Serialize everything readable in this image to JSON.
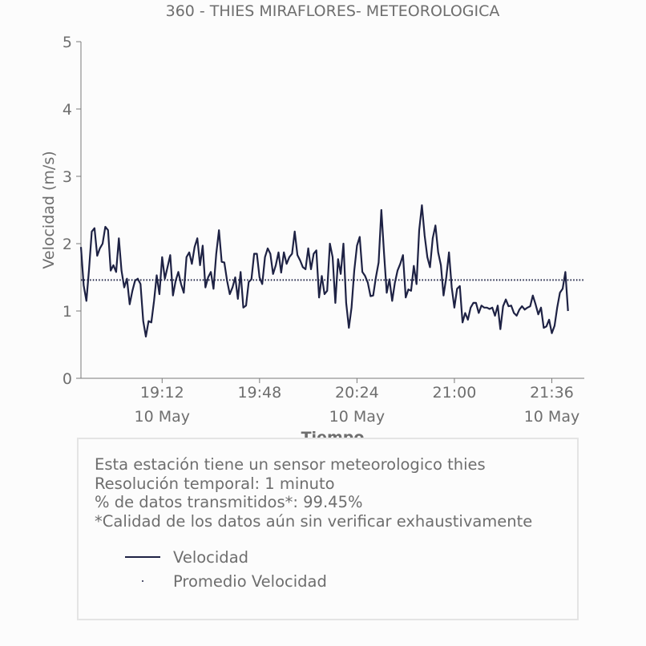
{
  "chart_data": {
    "type": "line",
    "title": "360 - THIES MIRAFLORES- METEOROLOGICA",
    "xlabel": "Tiempo",
    "ylabel": "Velocidad (m/s)",
    "ylim": [
      0,
      5
    ],
    "y_ticks": [
      "0",
      "1",
      "2",
      "3",
      "4",
      "5"
    ],
    "x_range": [
      "18:42",
      "21:48"
    ],
    "x_ticks": [
      {
        "time": "19:12",
        "label": "19:12",
        "date": "10 May"
      },
      {
        "time": "19:48",
        "label": "19:48",
        "date": ""
      },
      {
        "time": "20:24",
        "label": "20:24",
        "date": "10 May"
      },
      {
        "time": "21:00",
        "label": "21:00",
        "date": ""
      },
      {
        "time": "21:36",
        "label": "21:36",
        "date": "10 May"
      }
    ],
    "colors": {
      "velocidad": "#1e2244",
      "promedio": "#1e2244"
    },
    "series": [
      {
        "name": "Velocidad",
        "style": "solid",
        "start_time": "18:42",
        "step_minutes": 1,
        "values": [
          1.95,
          1.38,
          1.15,
          1.62,
          2.18,
          2.23,
          1.82,
          1.93,
          2.0,
          2.25,
          2.2,
          1.6,
          1.68,
          1.58,
          2.08,
          1.6,
          1.35,
          1.48,
          1.1,
          1.3,
          1.45,
          1.48,
          1.4,
          0.85,
          0.62,
          0.85,
          0.83,
          1.15,
          1.53,
          1.25,
          1.8,
          1.48,
          1.65,
          1.83,
          1.23,
          1.45,
          1.58,
          1.4,
          1.27,
          1.8,
          1.87,
          1.7,
          1.95,
          2.08,
          1.68,
          1.97,
          1.35,
          1.5,
          1.58,
          1.33,
          1.85,
          2.2,
          1.73,
          1.72,
          1.45,
          1.25,
          1.35,
          1.5,
          1.18,
          1.58,
          1.05,
          1.08,
          1.43,
          1.47,
          1.85,
          1.85,
          1.5,
          1.4,
          1.8,
          1.93,
          1.85,
          1.55,
          1.68,
          1.87,
          1.57,
          1.87,
          1.7,
          1.8,
          1.85,
          2.18,
          1.83,
          1.75,
          1.65,
          1.62,
          1.93,
          1.62,
          1.85,
          1.9,
          1.2,
          1.52,
          1.25,
          1.3,
          2.0,
          1.8,
          1.12,
          1.77,
          1.55,
          2.0,
          1.12,
          0.75,
          1.05,
          1.6,
          1.97,
          2.1,
          1.58,
          1.52,
          1.42,
          1.22,
          1.23,
          1.5,
          1.72,
          2.5,
          1.85,
          1.27,
          1.47,
          1.15,
          1.42,
          1.6,
          1.7,
          1.83,
          1.2,
          1.32,
          1.3,
          1.67,
          1.4,
          2.2,
          2.57,
          2.12,
          1.8,
          1.65,
          2.08,
          2.27,
          1.87,
          1.68,
          1.23,
          1.5,
          1.87,
          1.35,
          1.05,
          1.33,
          1.37,
          0.83,
          0.97,
          0.87,
          1.05,
          1.12,
          1.12,
          0.97,
          1.08,
          1.05,
          1.05,
          1.03,
          1.05,
          0.93,
          1.08,
          0.73,
          1.07,
          1.17,
          1.07,
          1.08,
          0.97,
          0.93,
          1.02,
          1.07,
          1.02,
          1.05,
          1.07,
          1.23,
          1.1,
          0.95,
          1.05,
          0.75,
          0.77,
          0.87,
          0.67,
          0.78,
          1.05,
          1.27,
          1.33,
          1.58,
          1.0
        ]
      },
      {
        "name": "Promedio Velocidad",
        "style": "dotted",
        "value": 1.46
      }
    ],
    "grid": false,
    "legend_position": "inside info box, bottom-left"
  },
  "info_box": {
    "lines": [
      "Esta estación tiene un sensor meteorologico thies",
      "Resolución temporal: 1 minuto",
      "% de datos transmitidos*: 99.45%",
      "*Calidad de los datos aún sin verificar exhaustivamente"
    ]
  },
  "legend": {
    "items": [
      {
        "label": "Velocidad",
        "style": "solid"
      },
      {
        "label": "Promedio Velocidad",
        "style": "dotted"
      }
    ]
  }
}
